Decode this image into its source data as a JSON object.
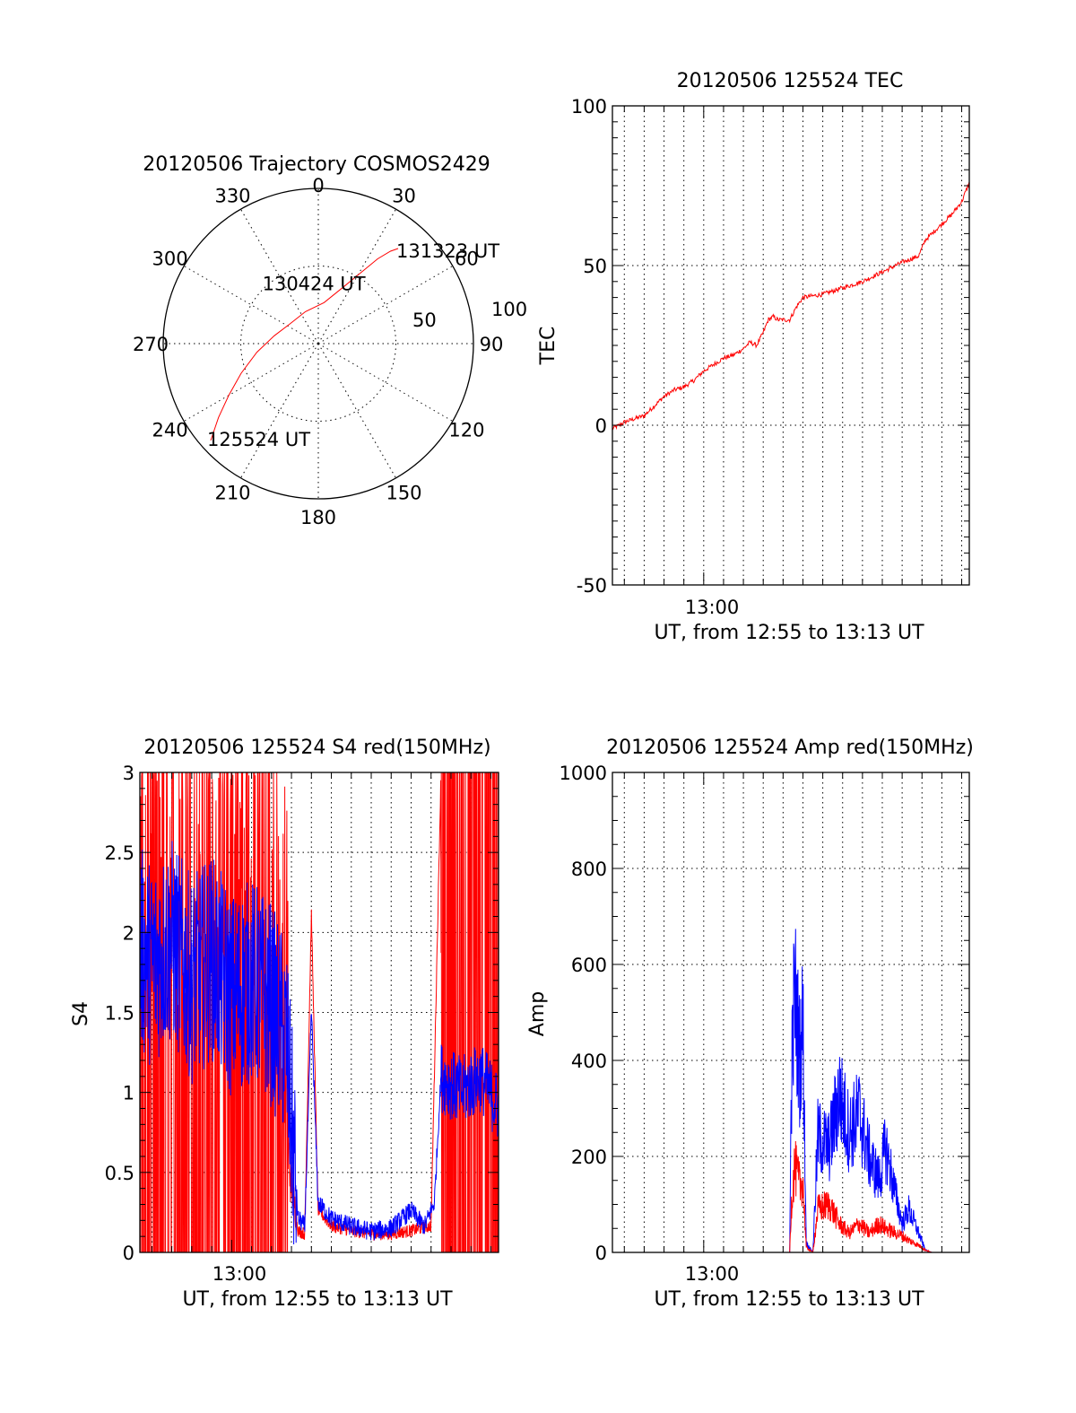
{
  "colors": {
    "red": "#ff0000",
    "blue": "#0000ff",
    "axis": "#000000"
  },
  "chart_data": [
    {
      "id": "polar",
      "type": "polar",
      "title": "20120506 Trajectory COSMOS2429",
      "azimuth_labels": [
        "0",
        "30",
        "60",
        "90",
        "120",
        "150",
        "180",
        "210",
        "240",
        "270",
        "300",
        "330"
      ],
      "elevation_rings": [
        0,
        50
      ],
      "ring_labels": [
        "100",
        "50"
      ],
      "trajectory": {
        "color": "red",
        "points": [
          [
            228.0,
            6.0
          ],
          [
            233.5,
            18.0
          ],
          [
            240.0,
            30.0
          ],
          [
            249.0,
            42.0
          ],
          [
            262.0,
            54.0
          ],
          [
            280.0,
            64.0
          ],
          [
            305.0,
            70.0
          ],
          [
            338.0,
            70.0
          ],
          [
            8.0,
            66.0
          ],
          [
            24.0,
            54.0
          ],
          [
            31.0,
            42.0
          ],
          [
            35.0,
            30.0
          ],
          [
            38.0,
            22.0
          ],
          [
            40.0,
            18.0
          ]
        ]
      },
      "annotations": [
        {
          "text": "131323 UT",
          "azimuth": 40,
          "elevation": 18
        },
        {
          "text": "130424 UT",
          "azimuth": 338,
          "elevation": 70
        },
        {
          "text": "125524 UT",
          "azimuth": 228,
          "elevation": 6
        }
      ]
    },
    {
      "id": "tec",
      "type": "line",
      "title": "20120506 125524 TEC",
      "xlabel": "UT, from 12:55 to 13:13 UT",
      "ylabel": "TEC",
      "xlim": [
        "12:55:24",
        "13:13:23"
      ],
      "x_tick_labels": [
        "13:00"
      ],
      "ylim": [
        -50,
        100
      ],
      "y_ticks": [
        -50,
        0,
        50,
        100
      ],
      "series": [
        {
          "color": "red",
          "points": [
            [
              "12:55:24",
              -1
            ],
            [
              "12:55:45",
              0
            ],
            [
              "12:56:00",
              1
            ],
            [
              "12:56:30",
              2
            ],
            [
              "12:57:00",
              3
            ],
            [
              "12:57:30",
              6
            ],
            [
              "12:58:00",
              9
            ],
            [
              "12:58:30",
              11
            ],
            [
              "12:59:00",
              12
            ],
            [
              "12:59:30",
              14
            ],
            [
              "13:00:00",
              17
            ],
            [
              "13:00:30",
              19
            ],
            [
              "13:01:00",
              21
            ],
            [
              "13:01:30",
              22
            ],
            [
              "13:02:00",
              24
            ],
            [
              "13:02:20",
              26
            ],
            [
              "13:02:40",
              25
            ],
            [
              "13:03:00",
              29
            ],
            [
              "13:03:15",
              33
            ],
            [
              "13:03:30",
              34
            ],
            [
              "13:03:45",
              33
            ],
            [
              "13:04:00",
              33
            ],
            [
              "13:04:20",
              33
            ],
            [
              "13:04:40",
              37
            ],
            [
              "13:05:00",
              40
            ],
            [
              "13:06:00",
              41
            ],
            [
              "13:07:00",
              43
            ],
            [
              "13:08:00",
              45
            ],
            [
              "13:09:00",
              48
            ],
            [
              "13:10:00",
              51
            ],
            [
              "13:10:50",
              53
            ],
            [
              "13:11:10",
              58
            ],
            [
              "13:11:30",
              60
            ],
            [
              "13:12:00",
              63
            ],
            [
              "13:12:30",
              66
            ],
            [
              "13:13:00",
              70
            ],
            [
              "13:13:23",
              76
            ]
          ]
        }
      ]
    },
    {
      "id": "s4",
      "type": "line",
      "title": "20120506 125524 S4 red(150MHz)",
      "xlabel": "UT, from 12:55 to 13:13 UT",
      "ylabel": "S4",
      "xlim": [
        "12:55:24",
        "13:13:23"
      ],
      "x_tick_labels": [
        "13:00"
      ],
      "ylim": [
        0,
        3
      ],
      "y_ticks": [
        0,
        0.5,
        1,
        1.5,
        2,
        2.5,
        3
      ],
      "y_tick_labels": [
        "0",
        "0.5",
        "1",
        "1.5",
        "2",
        "2.5",
        "3"
      ],
      "series": [
        {
          "color": "blue",
          "points": [
            [
              "12:55:24",
              1.9
            ],
            [
              "12:56:00",
              1.8
            ],
            [
              "12:57:00",
              1.95
            ],
            [
              "12:58:00",
              1.7
            ],
            [
              "12:59:00",
              1.85
            ],
            [
              "13:00:00",
              1.6
            ],
            [
              "13:01:00",
              1.7
            ],
            [
              "13:02:00",
              1.55
            ],
            [
              "13:02:45",
              1.3
            ],
            [
              "13:03:20",
              0.2
            ],
            [
              "13:03:40",
              0.15
            ],
            [
              "13:04:00",
              1.5
            ],
            [
              "13:04:20",
              0.3
            ],
            [
              "13:05:00",
              0.2
            ],
            [
              "13:06:00",
              0.15
            ],
            [
              "13:07:00",
              0.12
            ],
            [
              "13:08:00",
              0.14
            ],
            [
              "13:09:00",
              0.25
            ],
            [
              "13:09:40",
              0.15
            ],
            [
              "13:10:10",
              0.3
            ],
            [
              "13:10:30",
              1.1
            ],
            [
              "13:11:30",
              1.0
            ],
            [
              "13:12:30",
              1.1
            ],
            [
              "13:13:23",
              0.9
            ]
          ]
        },
        {
          "color": "red",
          "points": [
            [
              "12:55:24",
              1.5
            ],
            [
              "12:56:00",
              1.6
            ],
            [
              "12:57:00",
              1.4
            ],
            [
              "12:58:00",
              1.7
            ],
            [
              "12:59:00",
              1.5
            ],
            [
              "13:00:00",
              1.6
            ],
            [
              "13:01:00",
              1.5
            ],
            [
              "13:02:00",
              1.4
            ],
            [
              "13:02:45",
              0.7
            ],
            [
              "13:03:20",
              0.12
            ],
            [
              "13:03:40",
              0.1
            ],
            [
              "13:04:00",
              2.1
            ],
            [
              "13:04:20",
              0.25
            ],
            [
              "13:05:00",
              0.15
            ],
            [
              "13:06:00",
              0.12
            ],
            [
              "13:07:00",
              0.1
            ],
            [
              "13:08:00",
              0.1
            ],
            [
              "13:09:00",
              0.12
            ],
            [
              "13:10:00",
              0.15
            ],
            [
              "13:10:30",
              3.0
            ],
            [
              "13:11:30",
              3.0
            ],
            [
              "13:12:30",
              3.0
            ],
            [
              "13:13:23",
              3.0
            ]
          ]
        }
      ]
    },
    {
      "id": "amp",
      "type": "line",
      "title": "20120506 125524 Amp red(150MHz)",
      "xlabel": "UT, from 12:55 to 13:13 UT",
      "ylabel": "Amp",
      "xlim": [
        "12:55:24",
        "13:13:23"
      ],
      "x_tick_labels": [
        "13:00"
      ],
      "ylim": [
        0,
        1000
      ],
      "y_ticks": [
        0,
        200,
        400,
        600,
        800,
        1000
      ],
      "series": [
        {
          "color": "blue",
          "points": [
            [
              "12:55:24",
              0
            ],
            [
              "13:04:20",
              0
            ],
            [
              "13:04:25",
              350
            ],
            [
              "13:04:35",
              550
            ],
            [
              "13:04:50",
              400
            ],
            [
              "13:05:00",
              480
            ],
            [
              "13:05:10",
              20
            ],
            [
              "13:05:30",
              0
            ],
            [
              "13:05:45",
              240
            ],
            [
              "13:06:20",
              220
            ],
            [
              "13:06:50",
              330
            ],
            [
              "13:07:20",
              250
            ],
            [
              "13:07:50",
              290
            ],
            [
              "13:08:20",
              200
            ],
            [
              "13:08:50",
              150
            ],
            [
              "13:09:10",
              220
            ],
            [
              "13:09:40",
              120
            ],
            [
              "13:10:00",
              60
            ],
            [
              "13:10:20",
              90
            ],
            [
              "13:10:50",
              40
            ],
            [
              "13:11:10",
              5
            ],
            [
              "13:11:30",
              0
            ],
            [
              "13:13:23",
              0
            ]
          ]
        },
        {
          "color": "red",
          "points": [
            [
              "12:55:24",
              0
            ],
            [
              "13:04:20",
              0
            ],
            [
              "13:04:25",
              100
            ],
            [
              "13:04:35",
              180
            ],
            [
              "13:04:50",
              140
            ],
            [
              "13:05:00",
              150
            ],
            [
              "13:05:10",
              10
            ],
            [
              "13:05:30",
              0
            ],
            [
              "13:05:45",
              90
            ],
            [
              "13:06:20",
              100
            ],
            [
              "13:06:50",
              60
            ],
            [
              "13:07:20",
              40
            ],
            [
              "13:07:50",
              60
            ],
            [
              "13:08:20",
              40
            ],
            [
              "13:08:50",
              60
            ],
            [
              "13:09:10",
              50
            ],
            [
              "13:09:40",
              40
            ],
            [
              "13:10:00",
              35
            ],
            [
              "13:10:20",
              25
            ],
            [
              "13:10:50",
              15
            ],
            [
              "13:11:10",
              5
            ],
            [
              "13:11:30",
              0
            ],
            [
              "13:13:23",
              0
            ]
          ]
        }
      ]
    }
  ]
}
